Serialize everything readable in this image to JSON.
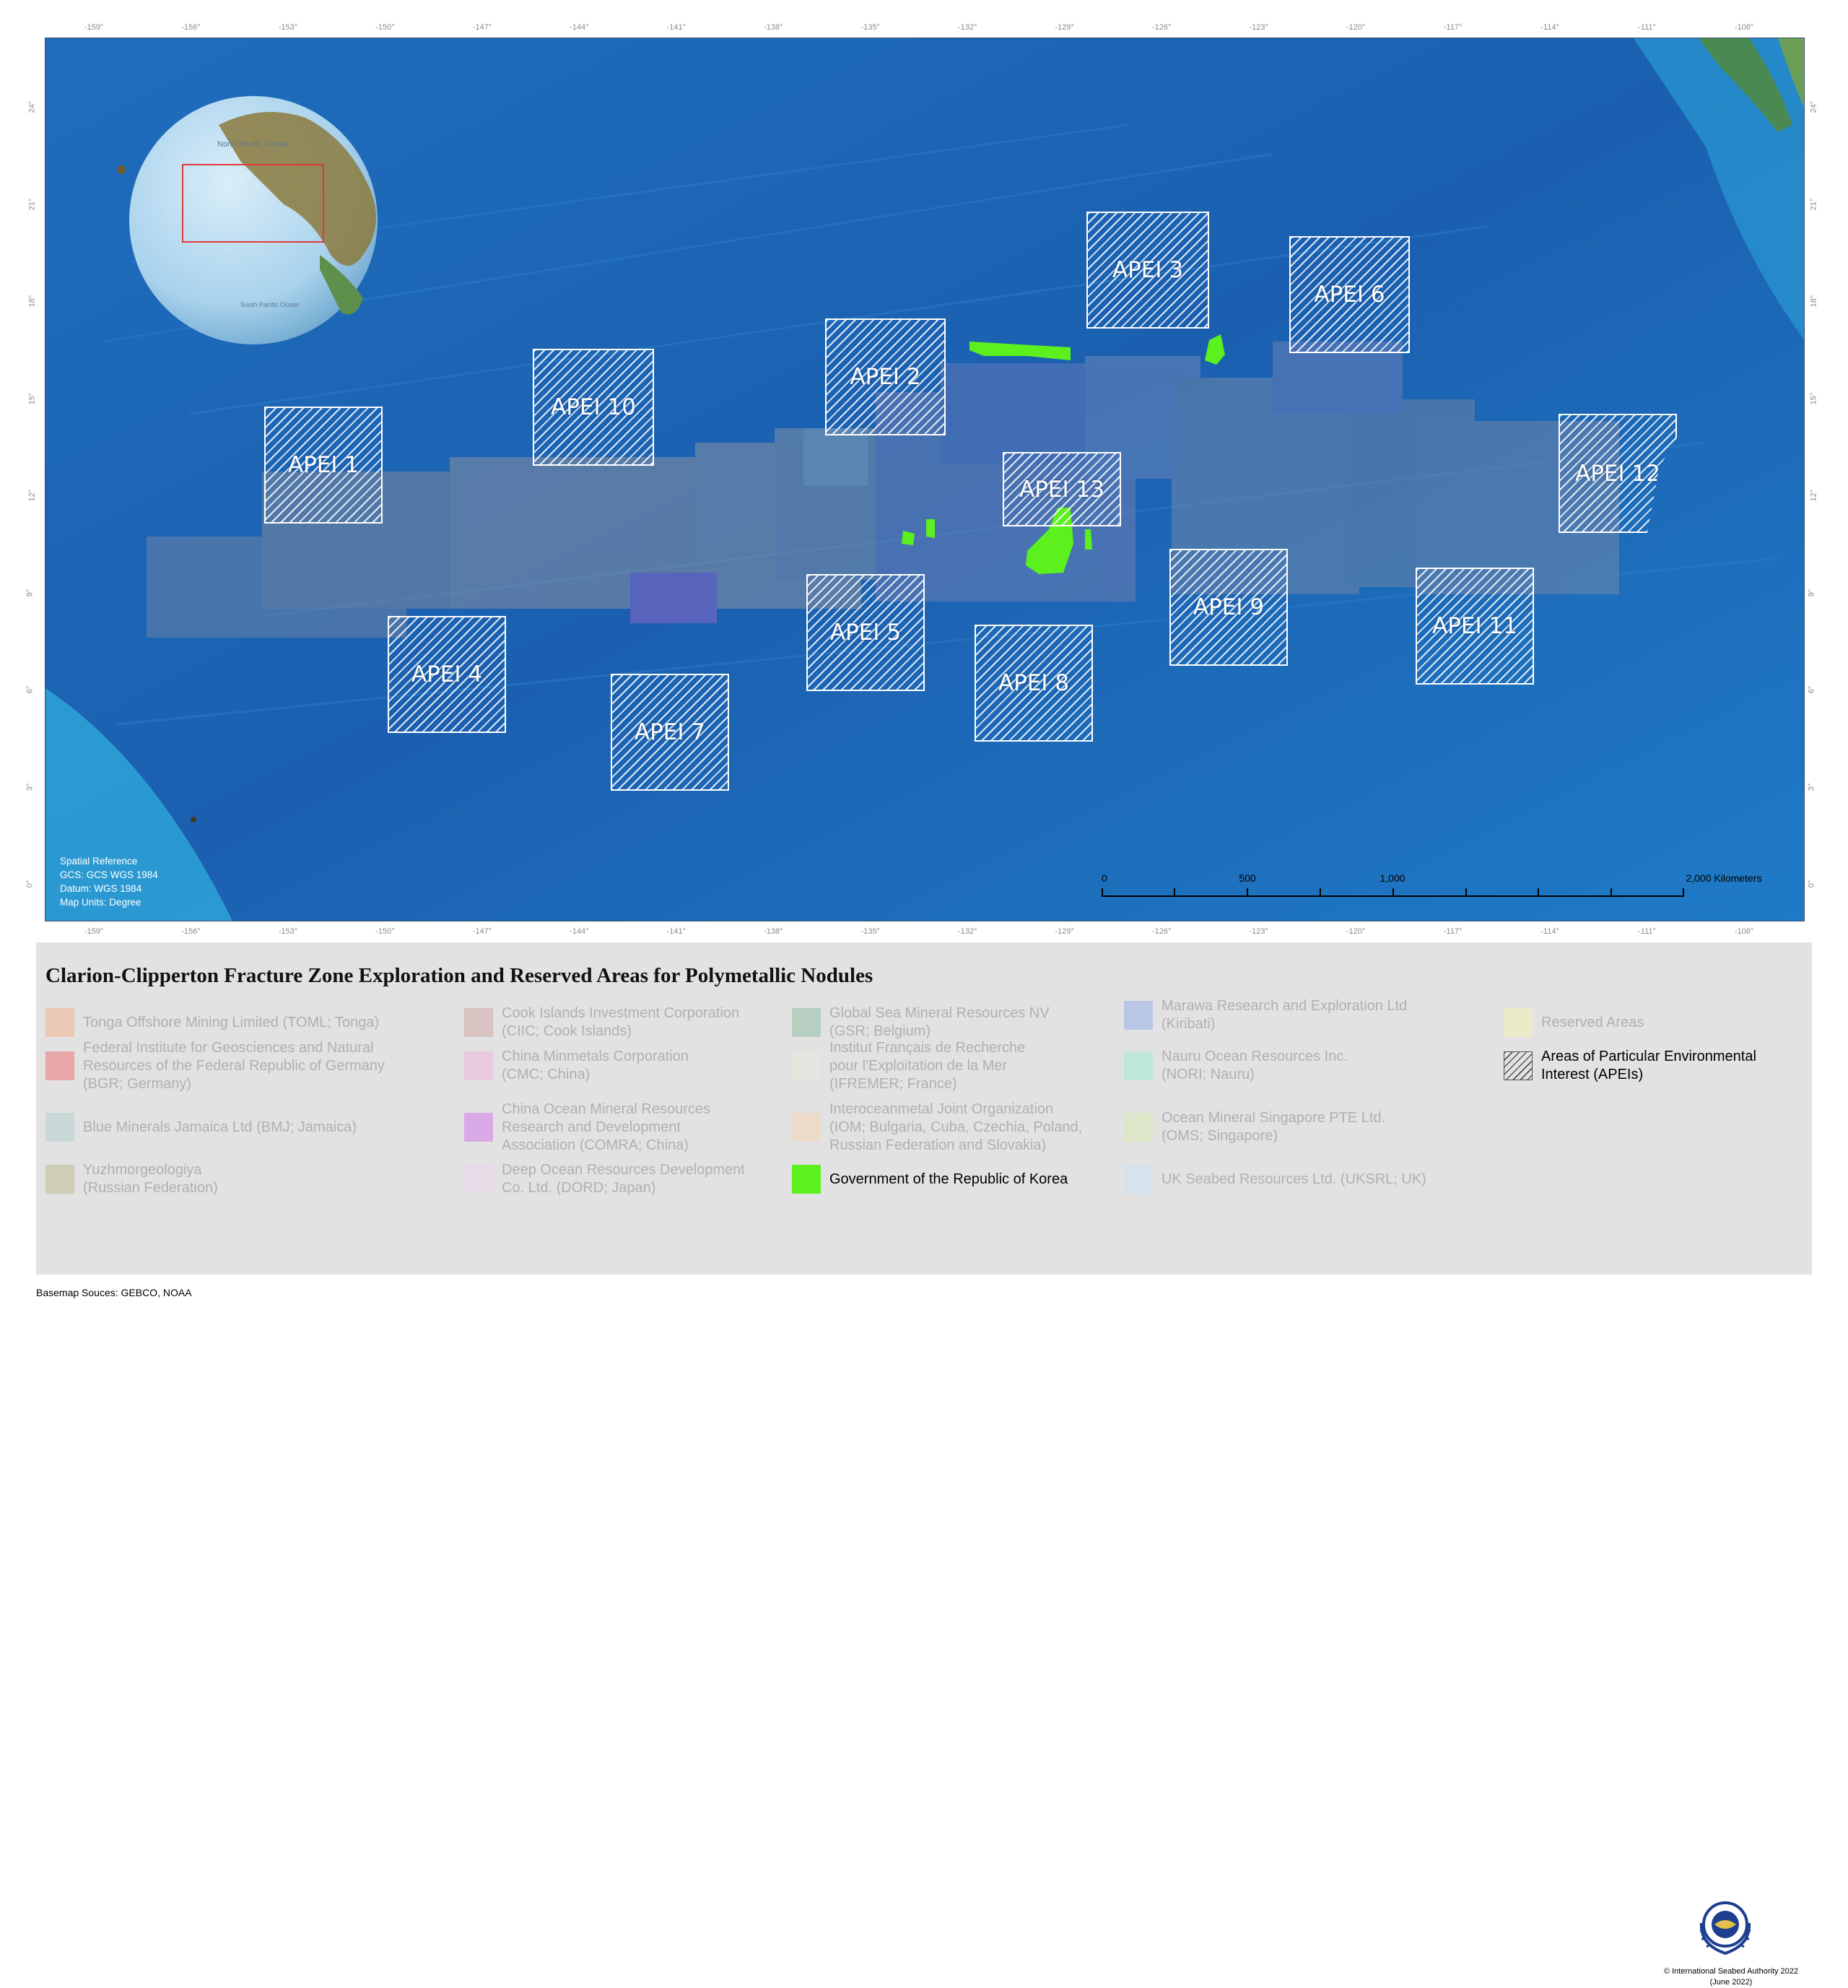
{
  "longitude_ticks": [
    "-159°",
    "-156°",
    "-153°",
    "-150°",
    "-147°",
    "-144°",
    "-141°",
    "-138°",
    "-135°",
    "-132°",
    "-129°",
    "-126°",
    "-123°",
    "-120°",
    "-117°",
    "-114°",
    "-111°",
    "-108°"
  ],
  "latitude_ticks": [
    "24°",
    "21°",
    "18°",
    "15°",
    "12°",
    "9°",
    "6°",
    "3°",
    "0°"
  ],
  "globe_labels": {
    "north": "North Pacific Ocean",
    "south": "South Pacific Ocean"
  },
  "apeis": [
    {
      "label": "APEI 1"
    },
    {
      "label": "APEI 2"
    },
    {
      "label": "APEI 3"
    },
    {
      "label": "APEI 4"
    },
    {
      "label": "APEI 5"
    },
    {
      "label": "APEI 6"
    },
    {
      "label": "APEI 7"
    },
    {
      "label": "APEI 8"
    },
    {
      "label": "APEI 9"
    },
    {
      "label": "APEI 10"
    },
    {
      "label": "APEI 11"
    },
    {
      "label": "APEI 12"
    },
    {
      "label": "APEI 13"
    }
  ],
  "spatial_reference": {
    "title": "Spatial Reference",
    "gcs": "GCS: GCS WGS 1984",
    "datum": "Datum: WGS 1984",
    "units": "Map Units: Degree"
  },
  "scale_bar": {
    "labels": [
      "0",
      "500",
      "1,000",
      "2,000 Kilometers"
    ]
  },
  "legend": {
    "title": "Clarion-Clipperton Fracture Zone Exploration and Reserved Areas for Polymetallic Nodules",
    "items": [
      {
        "label": "Tonga Offshore Mining Limited (TOML; Tonga)",
        "color": "#e9c8b4"
      },
      {
        "label": "Federal Institute for Geosciences and Natural\nResources of the Federal Republic of Germany\n(BGR; Germany)",
        "color": "#e8a8aa"
      },
      {
        "label": "Blue Minerals Jamaica Ltd (BMJ; Jamaica)",
        "color": "#c8d8d6"
      },
      {
        "label": "Yuzhmorgeologiya\n(Russian Federation)",
        "color": "#cfcdb6"
      },
      {
        "label": "Cook Islands Investment Corporation\n(CIIC; Cook Islands)",
        "color": "#d8c2c2"
      },
      {
        "label": "China Minmetals Corporation\n(CMC; China)",
        "color": "#e8c9e0"
      },
      {
        "label": "China Ocean Mineral Resources\nResearch and Development\nAssociation (COMRA; China)",
        "color": "#d9a9e6"
      },
      {
        "label": "Deep Ocean Resources Development\nCo. Ltd. (DORD; Japan)",
        "color": "#e6dbe6"
      },
      {
        "label": "Global Sea Mineral Resources NV\n(GSR; Belgium)",
        "color": "#b6cfc1"
      },
      {
        "label": "Institut Français de Recherche\npour l'Exploitation de la Mer\n(IFREMER; France)",
        "color": "#e6e4de"
      },
      {
        "label": "Interoceanmetal Joint Organization\n(IOM; Bulgaria, Cuba, Czechia, Poland,\nRussian Federation and Slovakia)",
        "color": "#ecdbc9"
      },
      {
        "label": "Government of the Republic of Korea",
        "color": "#5cf01e"
      },
      {
        "label": "Marawa Research and Exploration Ltd\n(Kiribati)",
        "color": "#b9c6e6"
      },
      {
        "label": "Nauru Ocean Resources Inc.\n(NORI; Nauru)",
        "color": "#bfe6da"
      },
      {
        "label": "Ocean Mineral Singapore PTE Ltd.\n(OMS; Singapore)",
        "color": "#dde6c9"
      },
      {
        "label": "UK Seabed Resources Ltd. (UKSRL; UK)",
        "color": "#d6e3ec"
      },
      {
        "label": "Reserved Areas",
        "color": "#ebebc9"
      },
      {
        "label": "Areas of Particular Environmental\nInterest (APEIs)",
        "color": "hatch"
      }
    ]
  },
  "logo_icon": "isa-emblem-icon",
  "copyright": "© International Seabed Authority 2022",
  "date_note": "(June 2022)",
  "basemap_sources": "Basemap Souces: GEBCO, NOAA"
}
